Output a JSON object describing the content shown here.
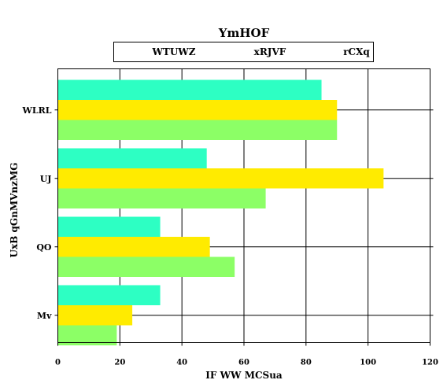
{
  "chart_data": {
    "type": "bar",
    "orientation": "horizontal",
    "title": "YmHOF",
    "xlabel": "IF WW MCSua",
    "ylabel": "UxB qGnMVnzMG",
    "categories": [
      "WLRL",
      "UJ",
      "QO",
      "Mv"
    ],
    "series": [
      {
        "name": "WTUWZ",
        "color": "#2dffc3",
        "values": [
          85,
          48,
          33,
          33
        ]
      },
      {
        "name": "xRJVF",
        "color": "#ffeb00",
        "values": [
          90,
          105,
          49,
          24
        ]
      },
      {
        "name": "rCXq",
        "color": "#8cff66",
        "values": [
          90,
          67,
          57,
          19
        ]
      }
    ],
    "xlim": [
      0,
      120
    ],
    "xticks": [
      0,
      20,
      40,
      60,
      80,
      100,
      120
    ],
    "grid": true,
    "legend_position": "top"
  }
}
